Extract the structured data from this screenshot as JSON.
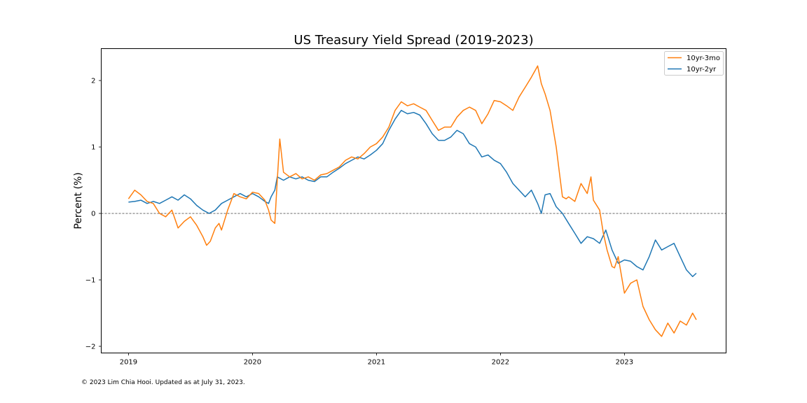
{
  "footnote": "© 2023 Lim Chia Hooi. Updated as at July 31, 2023.",
  "chart_data": {
    "type": "line",
    "title": "US Treasury Yield Spread (2019-2023)",
    "xlabel": "",
    "ylabel": "Percent (%)",
    "xlim": [
      2018.78,
      2023.82
    ],
    "ylim": [
      -2.1,
      2.48
    ],
    "xticks": [
      2019,
      2020,
      2021,
      2022,
      2023
    ],
    "yticks": [
      -2,
      -1,
      0,
      1,
      2
    ],
    "reference_line": 0,
    "grid": false,
    "legend_position": "top-right",
    "series": [
      {
        "name": "10yr-3mo",
        "color": "#ff7f0e",
        "x": [
          2019.0,
          2019.05,
          2019.1,
          2019.15,
          2019.2,
          2019.25,
          2019.3,
          2019.35,
          2019.4,
          2019.45,
          2019.5,
          2019.55,
          2019.6,
          2019.63,
          2019.66,
          2019.7,
          2019.73,
          2019.75,
          2019.8,
          2019.85,
          2019.9,
          2019.95,
          2020.0,
          2020.05,
          2020.1,
          2020.13,
          2020.15,
          2020.18,
          2020.2,
          2020.22,
          2020.25,
          2020.3,
          2020.35,
          2020.4,
          2020.45,
          2020.5,
          2020.55,
          2020.6,
          2020.65,
          2020.7,
          2020.75,
          2020.8,
          2020.85,
          2020.9,
          2020.95,
          2021.0,
          2021.05,
          2021.1,
          2021.15,
          2021.2,
          2021.25,
          2021.3,
          2021.35,
          2021.4,
          2021.45,
          2021.5,
          2021.55,
          2021.6,
          2021.65,
          2021.7,
          2021.75,
          2021.8,
          2021.85,
          2021.9,
          2021.95,
          2022.0,
          2022.05,
          2022.1,
          2022.15,
          2022.2,
          2022.25,
          2022.3,
          2022.33,
          2022.36,
          2022.4,
          2022.45,
          2022.48,
          2022.5,
          2022.53,
          2022.55,
          2022.6,
          2022.65,
          2022.7,
          2022.73,
          2022.75,
          2022.8,
          2022.83,
          2022.86,
          2022.9,
          2022.92,
          2022.95,
          2023.0,
          2023.05,
          2023.1,
          2023.15,
          2023.2,
          2023.25,
          2023.3,
          2023.35,
          2023.4,
          2023.45,
          2023.5,
          2023.55,
          2023.58
        ],
        "y": [
          0.22,
          0.35,
          0.28,
          0.18,
          0.15,
          0.0,
          -0.05,
          0.05,
          -0.22,
          -0.12,
          -0.05,
          -0.18,
          -0.35,
          -0.48,
          -0.42,
          -0.22,
          -0.15,
          -0.25,
          0.05,
          0.3,
          0.25,
          0.22,
          0.32,
          0.3,
          0.2,
          0.05,
          -0.1,
          -0.15,
          0.5,
          1.12,
          0.62,
          0.55,
          0.6,
          0.52,
          0.55,
          0.5,
          0.58,
          0.6,
          0.65,
          0.7,
          0.8,
          0.85,
          0.82,
          0.9,
          1.0,
          1.05,
          1.15,
          1.3,
          1.55,
          1.68,
          1.62,
          1.65,
          1.6,
          1.55,
          1.4,
          1.25,
          1.3,
          1.3,
          1.45,
          1.55,
          1.6,
          1.55,
          1.35,
          1.5,
          1.7,
          1.68,
          1.62,
          1.55,
          1.75,
          1.9,
          2.05,
          2.22,
          1.95,
          1.8,
          1.55,
          1.0,
          0.55,
          0.25,
          0.22,
          0.25,
          0.18,
          0.45,
          0.3,
          0.55,
          0.2,
          0.05,
          -0.3,
          -0.55,
          -0.8,
          -0.82,
          -0.65,
          -1.2,
          -1.05,
          -1.0,
          -1.4,
          -1.6,
          -1.75,
          -1.85,
          -1.65,
          -1.8,
          -1.62,
          -1.68,
          -1.5,
          -1.6
        ]
      },
      {
        "name": "10yr-2yr",
        "color": "#1f77b4",
        "x": [
          2019.0,
          2019.05,
          2019.1,
          2019.15,
          2019.2,
          2019.25,
          2019.3,
          2019.35,
          2019.4,
          2019.45,
          2019.5,
          2019.55,
          2019.6,
          2019.65,
          2019.7,
          2019.75,
          2019.8,
          2019.85,
          2019.9,
          2019.95,
          2020.0,
          2020.05,
          2020.1,
          2020.13,
          2020.15,
          2020.18,
          2020.2,
          2020.25,
          2020.3,
          2020.35,
          2020.4,
          2020.45,
          2020.5,
          2020.55,
          2020.6,
          2020.65,
          2020.7,
          2020.75,
          2020.8,
          2020.85,
          2020.9,
          2020.95,
          2021.0,
          2021.05,
          2021.1,
          2021.15,
          2021.2,
          2021.25,
          2021.3,
          2021.35,
          2021.4,
          2021.45,
          2021.5,
          2021.55,
          2021.6,
          2021.65,
          2021.7,
          2021.75,
          2021.8,
          2021.85,
          2021.9,
          2021.95,
          2022.0,
          2022.05,
          2022.1,
          2022.15,
          2022.2,
          2022.25,
          2022.3,
          2022.33,
          2022.36,
          2022.4,
          2022.45,
          2022.5,
          2022.55,
          2022.6,
          2022.65,
          2022.7,
          2022.75,
          2022.8,
          2022.85,
          2022.9,
          2022.95,
          2023.0,
          2023.05,
          2023.1,
          2023.15,
          2023.2,
          2023.25,
          2023.3,
          2023.35,
          2023.4,
          2023.45,
          2023.5,
          2023.55,
          2023.58
        ],
        "y": [
          0.17,
          0.18,
          0.2,
          0.15,
          0.18,
          0.15,
          0.2,
          0.25,
          0.2,
          0.28,
          0.22,
          0.12,
          0.05,
          0.0,
          0.05,
          0.15,
          0.2,
          0.25,
          0.3,
          0.25,
          0.3,
          0.25,
          0.18,
          0.15,
          0.25,
          0.35,
          0.55,
          0.5,
          0.55,
          0.52,
          0.55,
          0.5,
          0.48,
          0.55,
          0.55,
          0.62,
          0.68,
          0.75,
          0.8,
          0.85,
          0.82,
          0.88,
          0.95,
          1.05,
          1.25,
          1.42,
          1.55,
          1.5,
          1.52,
          1.48,
          1.35,
          1.2,
          1.1,
          1.1,
          1.15,
          1.25,
          1.2,
          1.05,
          1.0,
          0.85,
          0.88,
          0.8,
          0.75,
          0.62,
          0.45,
          0.35,
          0.25,
          0.35,
          0.15,
          0.0,
          0.28,
          0.3,
          0.1,
          0.0,
          -0.15,
          -0.3,
          -0.45,
          -0.35,
          -0.38,
          -0.45,
          -0.25,
          -0.55,
          -0.75,
          -0.7,
          -0.72,
          -0.8,
          -0.85,
          -0.65,
          -0.4,
          -0.55,
          -0.5,
          -0.45,
          -0.65,
          -0.85,
          -0.95,
          -0.9
        ]
      }
    ]
  }
}
